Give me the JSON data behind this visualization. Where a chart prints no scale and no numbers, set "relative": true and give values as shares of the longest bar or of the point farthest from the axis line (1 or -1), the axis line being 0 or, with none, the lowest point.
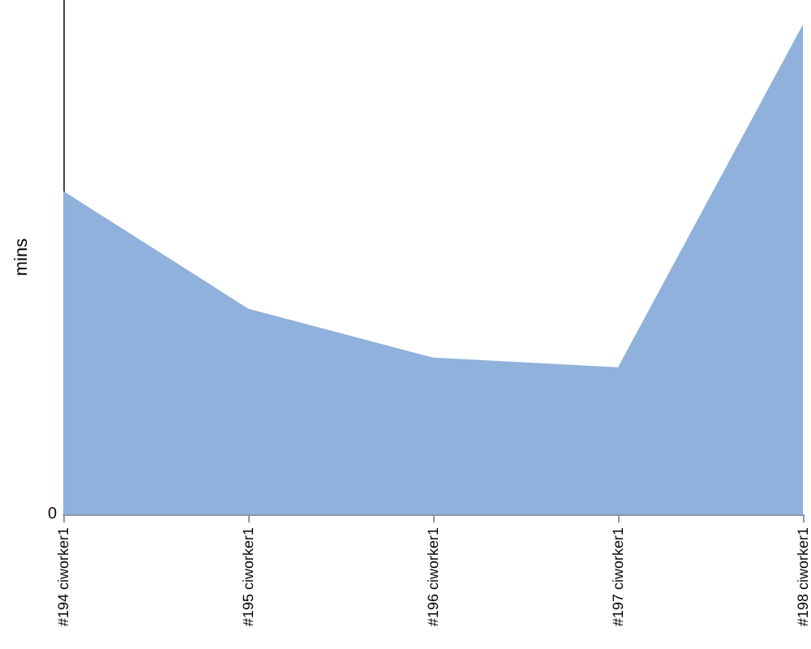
{
  "chart_data": {
    "type": "area",
    "ylabel": "mins",
    "relative": true,
    "categories": [
      "#194 ciworker1",
      "#195 ciworker1",
      "#196 ciworker1",
      "#197 ciworker1",
      "#198 ciworker1"
    ],
    "series": [
      {
        "color": "#8fb1db",
        "values": [
          0.66,
          0.42,
          0.32,
          0.3,
          1
        ]
      }
    ],
    "annotations": [
      "0"
    ],
    "grid": false
  }
}
